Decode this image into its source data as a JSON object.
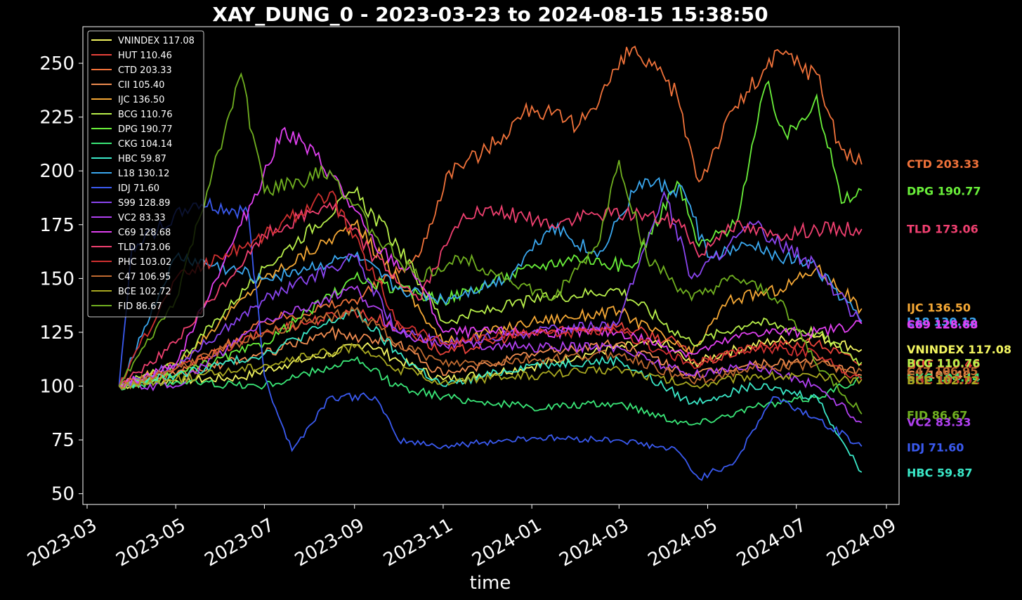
{
  "chart_data": {
    "type": "line",
    "title": "XAY_DUNG_0 - 2023-03-23 to 2024-08-15 15:38:50",
    "xlabel": "time",
    "ylabel": "",
    "xlim": [
      "2023-03-01",
      "2024-09-01"
    ],
    "ylim": [
      45,
      267
    ],
    "x_ticks": [
      "2023-03",
      "2023-05",
      "2023-07",
      "2023-09",
      "2023-11",
      "2024-01",
      "2024-03",
      "2024-05",
      "2024-07",
      "2024-09"
    ],
    "y_ticks": [
      50,
      75,
      100,
      125,
      150,
      175,
      200,
      225,
      250
    ],
    "grid": false,
    "legend_position": "top-left",
    "background": "#000000",
    "series": [
      {
        "name": "VNINDEX",
        "final": "117.08",
        "color": "#f3f560",
        "x": [
          "2023-03-23",
          "2023-04-15",
          "2023-05-15",
          "2023-06-15",
          "2023-07-15",
          "2023-08-15",
          "2023-09-10",
          "2023-10-01",
          "2023-11-01",
          "2023-12-01",
          "2024-01-01",
          "2024-02-01",
          "2024-03-01",
          "2024-04-01",
          "2024-04-20",
          "2024-05-15",
          "2024-06-15",
          "2024-07-15",
          "2024-08-15"
        ],
        "y": [
          100,
          102,
          103,
          104,
          110,
          115,
          120,
          112,
          103,
          106,
          109,
          114,
          118,
          120,
          110,
          116,
          121,
          123,
          117
        ]
      },
      {
        "name": "HUT",
        "final": "110.46",
        "color": "#e8423a",
        "x": [
          "2023-03-23",
          "2023-05-01",
          "2023-07-01",
          "2023-09-01",
          "2023-10-10",
          "2023-11-01",
          "2024-01-01",
          "2024-03-01",
          "2024-04-10",
          "2024-04-25",
          "2024-06-01",
          "2024-07-15",
          "2024-08-15"
        ],
        "y": [
          100,
          108,
          125,
          135,
          125,
          115,
          125,
          128,
          120,
          110,
          118,
          120,
          110
        ]
      },
      {
        "name": "CTD",
        "final": "203.33",
        "color": "#f0723a",
        "x": [
          "2023-03-23",
          "2023-05-01",
          "2023-07-01",
          "2023-09-01",
          "2023-10-15",
          "2023-11-05",
          "2023-12-01",
          "2024-01-01",
          "2024-02-01",
          "2024-03-10",
          "2024-04-10",
          "2024-04-25",
          "2024-05-20",
          "2024-06-20",
          "2024-07-15",
          "2024-08-01",
          "2024-08-15"
        ],
        "y": [
          100,
          105,
          130,
          140,
          160,
          200,
          210,
          230,
          220,
          257,
          235,
          195,
          230,
          255,
          245,
          210,
          203
        ]
      },
      {
        "name": "CII",
        "final": "105.40",
        "color": "#f08c50",
        "x": [
          "2023-03-23",
          "2023-05-01",
          "2023-07-01",
          "2023-08-15",
          "2023-10-01",
          "2023-11-01",
          "2024-01-01",
          "2024-03-01",
          "2024-04-20",
          "2024-06-01",
          "2024-07-15",
          "2024-08-15"
        ],
        "y": [
          100,
          105,
          115,
          125,
          120,
          105,
          115,
          120,
          105,
          110,
          112,
          105
        ]
      },
      {
        "name": "IJC",
        "final": "136.50",
        "color": "#f5a835",
        "x": [
          "2023-03-23",
          "2023-05-01",
          "2023-07-01",
          "2023-09-01",
          "2023-10-01",
          "2023-11-01",
          "2024-01-01",
          "2024-03-01",
          "2024-04-20",
          "2024-05-15",
          "2024-06-20",
          "2024-07-15",
          "2024-08-15"
        ],
        "y": [
          100,
          110,
          150,
          175,
          150,
          120,
          130,
          135,
          115,
          140,
          145,
          155,
          136
        ]
      },
      {
        "name": "BCG",
        "final": "110.76",
        "color": "#b8ef4a",
        "x": [
          "2023-03-23",
          "2023-05-01",
          "2023-07-01",
          "2023-09-01",
          "2023-10-01",
          "2023-11-01",
          "2024-01-01",
          "2024-03-01",
          "2024-04-20",
          "2024-06-01",
          "2024-07-15",
          "2024-08-15"
        ],
        "y": [
          100,
          110,
          155,
          190,
          165,
          130,
          140,
          145,
          120,
          130,
          125,
          111
        ]
      },
      {
        "name": "DPG",
        "final": "190.77",
        "color": "#6af03a",
        "x": [
          "2023-03-23",
          "2023-05-01",
          "2023-07-01",
          "2023-09-01",
          "2023-10-01",
          "2023-11-01",
          "2024-01-01",
          "2024-02-01",
          "2024-03-10",
          "2024-04-10",
          "2024-04-25",
          "2024-05-20",
          "2024-06-10",
          "2024-06-25",
          "2024-07-15",
          "2024-08-01",
          "2024-08-15"
        ],
        "y": [
          100,
          105,
          120,
          150,
          145,
          140,
          155,
          160,
          155,
          195,
          165,
          175,
          240,
          215,
          235,
          185,
          191
        ]
      },
      {
        "name": "CKG",
        "final": "104.14",
        "color": "#3ae878",
        "x": [
          "2023-03-23",
          "2023-05-01",
          "2023-07-01",
          "2023-09-01",
          "2023-10-01",
          "2023-11-01",
          "2024-01-01",
          "2024-03-01",
          "2024-04-20",
          "2024-06-01",
          "2024-07-15",
          "2024-08-15"
        ],
        "y": [
          100,
          102,
          100,
          112,
          100,
          95,
          90,
          92,
          82,
          90,
          95,
          104
        ]
      },
      {
        "name": "HBC",
        "final": "59.87",
        "color": "#3ae8c8",
        "x": [
          "2023-03-23",
          "2023-05-01",
          "2023-07-01",
          "2023-09-01",
          "2023-10-01",
          "2023-11-01",
          "2024-01-01",
          "2024-03-01",
          "2024-04-20",
          "2024-06-01",
          "2024-07-15",
          "2024-08-01",
          "2024-08-15"
        ],
        "y": [
          100,
          105,
          115,
          135,
          115,
          100,
          110,
          112,
          92,
          100,
          95,
          75,
          60
        ]
      },
      {
        "name": "L18",
        "final": "130.12",
        "color": "#3aa8f0",
        "x": [
          "2023-03-23",
          "2023-05-01",
          "2023-07-01",
          "2023-09-01",
          "2023-10-01",
          "2023-11-01",
          "2023-12-15",
          "2024-01-15",
          "2024-02-15",
          "2024-03-15",
          "2024-04-15",
          "2024-05-01",
          "2024-06-01",
          "2024-07-15",
          "2024-08-15"
        ],
        "y": [
          100,
          160,
          150,
          160,
          145,
          140,
          150,
          175,
          160,
          195,
          190,
          160,
          165,
          155,
          130
        ]
      },
      {
        "name": "IDJ",
        "final": "71.60",
        "color": "#3a5af0",
        "x": [
          "2023-03-23",
          "2023-04-01",
          "2023-05-15",
          "2023-06-20",
          "2023-07-01",
          "2023-07-20",
          "2023-08-15",
          "2023-09-15",
          "2023-10-01",
          "2023-11-01",
          "2024-01-01",
          "2024-03-01",
          "2024-04-10",
          "2024-04-25",
          "2024-05-20",
          "2024-06-15",
          "2024-07-15",
          "2024-08-15"
        ],
        "y": [
          100,
          165,
          185,
          180,
          105,
          70,
          95,
          95,
          75,
          72,
          76,
          75,
          70,
          57,
          65,
          95,
          85,
          72
        ]
      },
      {
        "name": "S99",
        "final": "128.89",
        "color": "#8a45f0",
        "x": [
          "2023-03-23",
          "2023-05-01",
          "2023-07-01",
          "2023-09-01",
          "2023-10-01",
          "2023-11-01",
          "2024-01-01",
          "2024-03-01",
          "2024-04-01",
          "2024-04-20",
          "2024-06-01",
          "2024-07-15",
          "2024-08-15"
        ],
        "y": [
          100,
          110,
          140,
          160,
          125,
          120,
          125,
          130,
          190,
          150,
          175,
          155,
          129
        ]
      },
      {
        "name": "VC2",
        "final": "83.33",
        "color": "#b040f0",
        "x": [
          "2023-03-23",
          "2023-05-01",
          "2023-07-01",
          "2023-09-01",
          "2023-10-01",
          "2023-11-01",
          "2024-01-01",
          "2024-03-01",
          "2024-04-20",
          "2024-06-01",
          "2024-07-15",
          "2024-08-15"
        ],
        "y": [
          100,
          100,
          130,
          145,
          125,
          120,
          118,
          118,
          105,
          110,
          100,
          83
        ]
      },
      {
        "name": "C69",
        "final": "128.68",
        "color": "#e040f0",
        "x": [
          "2023-03-23",
          "2023-05-01",
          "2023-06-15",
          "2023-07-15",
          "2023-08-15",
          "2023-09-15",
          "2023-10-15",
          "2023-11-01",
          "2024-01-01",
          "2024-03-01",
          "2024-04-20",
          "2024-06-01",
          "2024-07-15",
          "2024-08-15"
        ],
        "y": [
          100,
          110,
          175,
          220,
          200,
          165,
          150,
          125,
          125,
          125,
          115,
          125,
          125,
          129
        ]
      },
      {
        "name": "TLD",
        "final": "173.06",
        "color": "#f04070",
        "x": [
          "2023-03-23",
          "2023-05-01",
          "2023-07-01",
          "2023-08-15",
          "2023-09-15",
          "2023-10-15",
          "2023-11-15",
          "2023-12-15",
          "2024-01-15",
          "2024-02-15",
          "2024-03-15",
          "2024-04-15",
          "2024-04-25",
          "2024-05-15",
          "2024-06-15",
          "2024-07-15",
          "2024-08-15"
        ],
        "y": [
          100,
          120,
          170,
          185,
          160,
          140,
          180,
          180,
          175,
          180,
          180,
          175,
          160,
          175,
          170,
          173,
          173
        ]
      },
      {
        "name": "PHC",
        "final": "103.02",
        "color": "#d03030",
        "x": [
          "2023-03-23",
          "2023-05-01",
          "2023-07-01",
          "2023-08-15",
          "2023-10-01",
          "2023-11-01",
          "2024-01-01",
          "2024-03-01",
          "2024-04-20",
          "2024-06-01",
          "2024-07-15",
          "2024-08-15"
        ],
        "y": [
          100,
          150,
          170,
          190,
          130,
          120,
          125,
          125,
          110,
          118,
          115,
          103
        ]
      },
      {
        "name": "C47",
        "final": "106.95",
        "color": "#c06a30",
        "x": [
          "2023-03-23",
          "2023-05-01",
          "2023-07-01",
          "2023-09-01",
          "2023-10-01",
          "2023-11-01",
          "2024-01-01",
          "2024-03-01",
          "2024-04-20",
          "2024-06-01",
          "2024-07-15",
          "2024-08-15"
        ],
        "y": [
          100,
          108,
          125,
          135,
          120,
          110,
          112,
          115,
          102,
          108,
          110,
          107
        ]
      },
      {
        "name": "BCE",
        "final": "102.72",
        "color": "#a8a820",
        "x": [
          "2023-03-23",
          "2023-05-01",
          "2023-07-01",
          "2023-09-01",
          "2023-10-01",
          "2023-11-01",
          "2024-01-01",
          "2024-03-01",
          "2024-04-20",
          "2024-06-01",
          "2024-07-15",
          "2024-08-15"
        ],
        "y": [
          100,
          103,
          110,
          118,
          108,
          102,
          105,
          108,
          100,
          105,
          104,
          103
        ]
      },
      {
        "name": "FID",
        "final": "86.67",
        "color": "#70b020",
        "x": [
          "2023-03-23",
          "2023-05-01",
          "2023-06-15",
          "2023-07-01",
          "2023-08-15",
          "2023-09-15",
          "2023-10-15",
          "2023-11-15",
          "2023-12-15",
          "2024-01-15",
          "2024-02-15",
          "2024-03-01",
          "2024-03-20",
          "2024-04-20",
          "2024-05-20",
          "2024-06-20",
          "2024-07-15",
          "2024-08-15"
        ],
        "y": [
          100,
          140,
          245,
          190,
          200,
          170,
          150,
          160,
          150,
          140,
          165,
          205,
          160,
          140,
          150,
          140,
          110,
          87
        ]
      }
    ]
  }
}
